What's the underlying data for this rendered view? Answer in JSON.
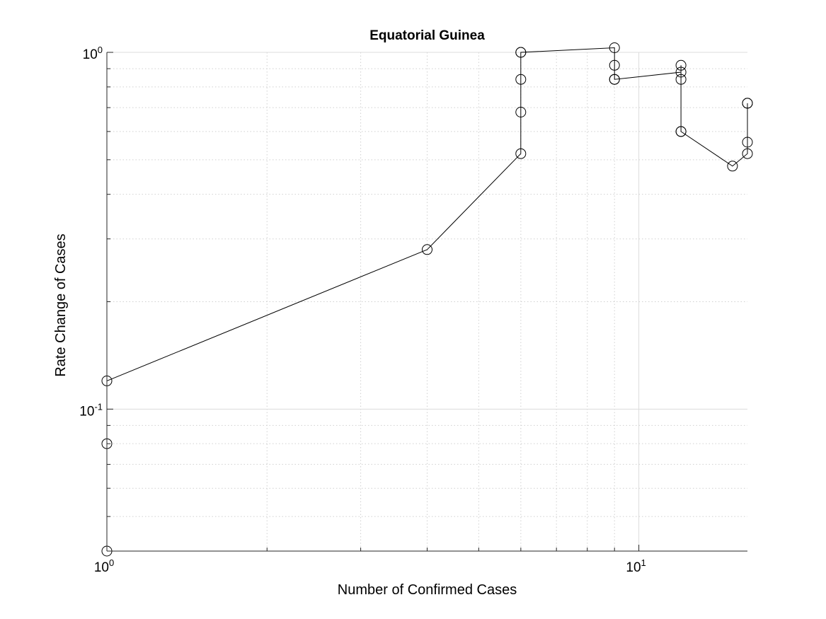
{
  "chart_data": {
    "type": "line",
    "title": "Equatorial Guinea",
    "xlabel": "Number of Confirmed Cases",
    "ylabel": "Rate Change of Cases",
    "xscale": "log",
    "yscale": "log",
    "xlim": [
      1,
      16
    ],
    "ylim": [
      0.04,
      1.0
    ],
    "grid": true,
    "marker": "open-circle",
    "line_color": "#000000",
    "xticks": [
      {
        "base": "10",
        "exp": "0",
        "value": 1
      },
      {
        "base": "10",
        "exp": "1",
        "value": 10
      }
    ],
    "yticks": [
      {
        "base": "10",
        "exp": "-1",
        "value": 0.1
      },
      {
        "base": "10",
        "exp": "0",
        "value": 1
      }
    ],
    "series": [
      {
        "x": [
          1,
          1,
          1,
          4,
          6,
          6,
          6,
          6,
          6,
          9,
          9,
          9,
          9,
          12,
          12,
          12,
          12,
          12,
          15,
          16,
          16,
          16,
          16
        ],
        "y": [
          0.04,
          0.08,
          0.12,
          0.28,
          0.52,
          0.68,
          0.84,
          1.0,
          1.0,
          1.03,
          0.92,
          0.84,
          0.84,
          0.88,
          0.92,
          0.84,
          0.6,
          0.6,
          0.48,
          0.52,
          0.56,
          0.72,
          0.72
        ]
      }
    ]
  }
}
